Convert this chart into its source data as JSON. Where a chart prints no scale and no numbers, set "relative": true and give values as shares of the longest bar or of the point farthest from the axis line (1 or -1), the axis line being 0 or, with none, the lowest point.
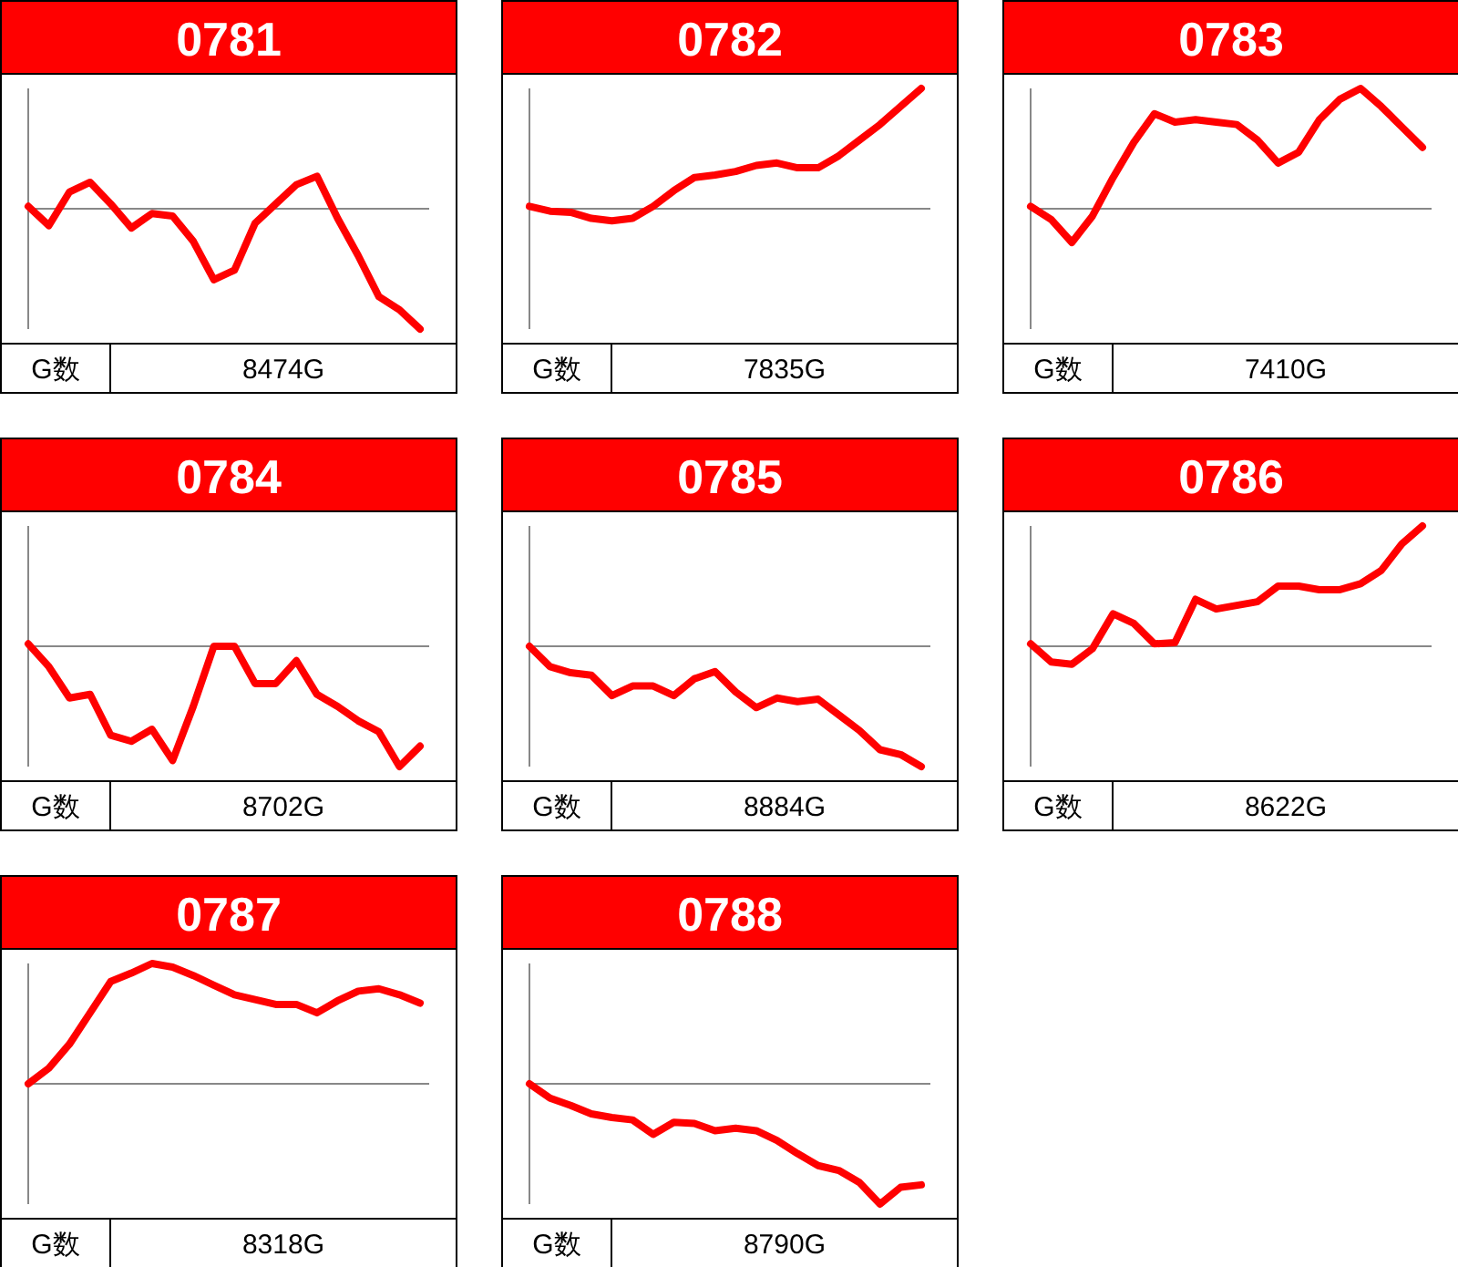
{
  "chart_data": [
    {
      "type": "line",
      "title": "0781",
      "relative": true,
      "color": "#ff0000",
      "annotations": [
        "G数",
        "8474G"
      ],
      "categories": [
        null,
        null,
        null,
        null,
        null,
        null,
        null,
        null,
        null,
        null,
        null,
        null,
        null,
        null,
        null,
        null,
        null,
        null,
        null,
        null
      ],
      "values": [
        0.02,
        -0.14,
        0.14,
        0.22,
        0.04,
        -0.16,
        -0.04,
        -0.06,
        -0.27,
        -0.59,
        -0.51,
        -0.12,
        0.04,
        0.2,
        0.27,
        -0.08,
        -0.39,
        -0.73,
        -0.84,
        -1
      ]
    },
    {
      "type": "line",
      "title": "0782",
      "relative": true,
      "color": "#ff0000",
      "annotations": [
        "G数",
        "7835G"
      ],
      "categories": [
        null,
        null,
        null,
        null,
        null,
        null,
        null,
        null,
        null,
        null,
        null,
        null,
        null,
        null,
        null,
        null,
        null,
        null,
        null,
        null
      ],
      "values": [
        0.02,
        -0.02,
        -0.03,
        -0.08,
        -0.1,
        -0.08,
        0.02,
        0.15,
        0.26,
        0.28,
        0.31,
        0.36,
        0.38,
        0.34,
        0.34,
        0.44,
        0.57,
        0.7,
        0.85,
        1
      ]
    },
    {
      "type": "line",
      "title": "0783",
      "relative": true,
      "color": "#ff0000",
      "annotations": [
        "G数",
        "7410G"
      ],
      "categories": [
        null,
        null,
        null,
        null,
        null,
        null,
        null,
        null,
        null,
        null,
        null,
        null,
        null,
        null,
        null,
        null,
        null,
        null,
        null,
        null
      ],
      "values": [
        0.02,
        -0.09,
        -0.28,
        -0.06,
        0.26,
        0.55,
        0.79,
        0.72,
        0.74,
        0.72,
        0.7,
        0.57,
        0.38,
        0.47,
        0.74,
        0.91,
        1,
        0.85,
        0.68,
        0.51
      ]
    },
    {
      "type": "line",
      "title": "0784",
      "relative": true,
      "color": "#ff0000",
      "annotations": [
        "G数",
        "8702G"
      ],
      "categories": [
        null,
        null,
        null,
        null,
        null,
        null,
        null,
        null,
        null,
        null,
        null,
        null,
        null,
        null,
        null,
        null,
        null,
        null,
        null,
        null
      ],
      "values": [
        0.02,
        -0.17,
        -0.43,
        -0.4,
        -0.74,
        -0.79,
        -0.69,
        -0.95,
        -0.5,
        0,
        0,
        -0.31,
        -0.31,
        -0.12,
        -0.4,
        -0.5,
        -0.62,
        -0.71,
        -1,
        -0.83
      ]
    },
    {
      "type": "line",
      "title": "0785",
      "relative": true,
      "color": "#ff0000",
      "annotations": [
        "G数",
        "8884G"
      ],
      "categories": [
        null,
        null,
        null,
        null,
        null,
        null,
        null,
        null,
        null,
        null,
        null,
        null,
        null,
        null,
        null,
        null,
        null,
        null,
        null,
        null
      ],
      "values": [
        0,
        -0.17,
        -0.22,
        -0.24,
        -0.41,
        -0.33,
        -0.33,
        -0.41,
        -0.27,
        -0.21,
        -0.38,
        -0.51,
        -0.43,
        -0.46,
        -0.44,
        -0.57,
        -0.7,
        -0.86,
        -0.9,
        -1
      ]
    },
    {
      "type": "line",
      "title": "0786",
      "relative": true,
      "color": "#ff0000",
      "annotations": [
        "G数",
        "8622G"
      ],
      "categories": [
        null,
        null,
        null,
        null,
        null,
        null,
        null,
        null,
        null,
        null,
        null,
        null,
        null,
        null,
        null,
        null,
        null,
        null,
        null,
        null
      ],
      "values": [
        0.02,
        -0.13,
        -0.15,
        -0.02,
        0.27,
        0.19,
        0.02,
        0.03,
        0.39,
        0.31,
        0.34,
        0.37,
        0.5,
        0.5,
        0.47,
        0.47,
        0.52,
        0.63,
        0.85,
        1
      ]
    },
    {
      "type": "line",
      "title": "0787",
      "relative": true,
      "color": "#ff0000",
      "annotations": [
        "G数",
        "8318G"
      ],
      "categories": [
        null,
        null,
        null,
        null,
        null,
        null,
        null,
        null,
        null,
        null,
        null,
        null,
        null,
        null,
        null,
        null,
        null,
        null,
        null,
        null
      ],
      "values": [
        0,
        0.13,
        0.33,
        0.59,
        0.85,
        0.92,
        1,
        0.97,
        0.9,
        0.82,
        0.74,
        0.7,
        0.66,
        0.66,
        0.59,
        0.69,
        0.77,
        0.79,
        0.74,
        0.67
      ]
    },
    {
      "type": "line",
      "title": "0788",
      "relative": true,
      "color": "#ff0000",
      "annotations": [
        "G数",
        "8790G"
      ],
      "categories": [
        null,
        null,
        null,
        null,
        null,
        null,
        null,
        null,
        null,
        null,
        null,
        null,
        null,
        null,
        null,
        null,
        null,
        null,
        null,
        null
      ],
      "values": [
        0,
        -0.12,
        -0.18,
        -0.25,
        -0.28,
        -0.3,
        -0.42,
        -0.32,
        -0.33,
        -0.39,
        -0.37,
        -0.39,
        -0.47,
        -0.58,
        -0.68,
        -0.72,
        -0.82,
        -1,
        -0.86,
        -0.84
      ]
    }
  ]
}
